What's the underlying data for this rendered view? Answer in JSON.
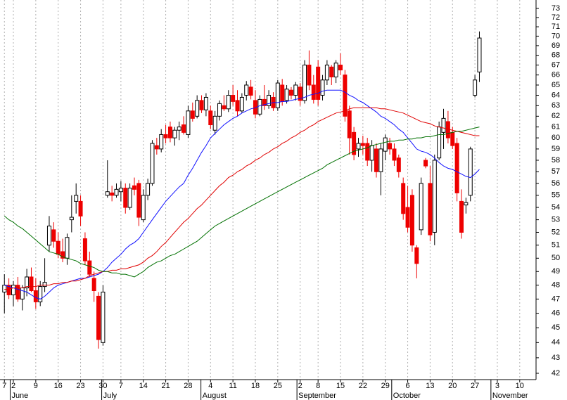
{
  "chart_data": {
    "type": "candlestick",
    "log": true,
    "ylim": [
      42,
      73
    ],
    "yticks": [
      42,
      43,
      44,
      45,
      46,
      47,
      48,
      49,
      50,
      51,
      52,
      53,
      54,
      55,
      56,
      57,
      58,
      59,
      60,
      61,
      62,
      63,
      64,
      65,
      66,
      67,
      68,
      69,
      70,
      71,
      72,
      73
    ],
    "grid": true,
    "up_color": "#ffffff",
    "down_color": "#ee0000",
    "categories": [
      "7",
      null,
      "2",
      null,
      null,
      null,
      null,
      "9",
      null,
      null,
      null,
      null,
      "16",
      null,
      null,
      null,
      null,
      "23",
      null,
      null,
      null,
      null,
      "30",
      null,
      null,
      null,
      "7",
      null,
      null,
      null,
      null,
      "14",
      null,
      null,
      null,
      null,
      "21",
      null,
      null,
      null,
      null,
      "28",
      null,
      null,
      null,
      null,
      "4",
      null,
      null,
      null,
      null,
      "11",
      null,
      null,
      null,
      null,
      "18",
      null,
      null,
      null,
      null,
      "25",
      null,
      null,
      null,
      null,
      "2",
      null,
      null,
      null,
      "8",
      null,
      null,
      null,
      null,
      "15",
      null,
      null,
      null,
      null,
      "22",
      null,
      null,
      null,
      null,
      "29",
      null,
      null,
      null,
      null,
      "6",
      null,
      null,
      null,
      null,
      "13",
      null,
      null,
      null,
      null,
      "20",
      null,
      null,
      null,
      null,
      "27",
      null,
      null,
      null,
      null,
      "3",
      null,
      null,
      null,
      null,
      "10",
      null,
      null,
      null
    ],
    "months": [
      "June",
      "July",
      "August",
      "September",
      "October",
      "November"
    ],
    "open": [
      47.5,
      48.0,
      47.3,
      48.0,
      47.0,
      47.8,
      48.6,
      47.6,
      46.8,
      47.9,
      51.0,
      52.2,
      51.3,
      50.5,
      50.0,
      53.0,
      54.5,
      54.5,
      51.5,
      49.8,
      48.5,
      47.2,
      44.0,
      55.0,
      55.2,
      55.0,
      55.3,
      55.6,
      54.0,
      55.8,
      56.0,
      53.0,
      55.0,
      56.0,
      59.3,
      59.0,
      60.3,
      61.0,
      60.0,
      60.7,
      61.2,
      60.3,
      62.5,
      62.0,
      63.5,
      62.6,
      62.5,
      60.7,
      62.0,
      63.0,
      62.7,
      64.0,
      63.5,
      62.5,
      64.0,
      64.8,
      63.5,
      62.2,
      63.6,
      63.0,
      63.8,
      62.8,
      65.0,
      63.5,
      64.5,
      64.0,
      64.8,
      63.5,
      67.0,
      65.0,
      66.8,
      64.0,
      65.5,
      66.8,
      65.8,
      67.0,
      66.0,
      62.5,
      60.5,
      59.0,
      59.5,
      59.5,
      58.0,
      59.0,
      57.0,
      58.8,
      59.5,
      59.0,
      58.2,
      56.0,
      54.0,
      55.0,
      50.8,
      52.2,
      58.0,
      56.0,
      52.0,
      58.2,
      60.5,
      61.5,
      60.5,
      59.5,
      54.5,
      54.2,
      55.0,
      64.0,
      66.3,
      null,
      null,
      null,
      null,
      null,
      null,
      null,
      null,
      null,
      null,
      null,
      null
    ],
    "high": [
      48.8,
      48.5,
      48.3,
      48.6,
      48.0,
      49.2,
      49.3,
      48.5,
      48.3,
      50.0,
      53.3,
      52.8,
      52.0,
      51.5,
      51.9,
      55.0,
      56.0,
      55.0,
      52.0,
      50.5,
      49.0,
      47.5,
      48.0,
      58.0,
      55.8,
      56.0,
      56.2,
      56.0,
      56.0,
      56.5,
      56.3,
      55.5,
      56.4,
      59.8,
      60.0,
      60.8,
      61.2,
      61.5,
      61.0,
      61.5,
      62.0,
      63.0,
      63.3,
      64.0,
      64.0,
      64.2,
      63.0,
      62.5,
      63.5,
      64.0,
      64.5,
      65.0,
      64.5,
      64.2,
      65.4,
      65.5,
      64.5,
      64.0,
      65.0,
      64.5,
      64.3,
      65.5,
      65.6,
      65.0,
      64.8,
      65.3,
      65.2,
      67.5,
      68.5,
      66.0,
      67.5,
      66.0,
      67.5,
      67.0,
      67.5,
      68.2,
      66.5,
      63.0,
      61.0,
      60.0,
      60.2,
      60.0,
      59.8,
      59.5,
      59.5,
      60.3,
      60.0,
      59.5,
      58.5,
      56.5,
      55.8,
      55.5,
      51.0,
      56.5,
      58.2,
      57.5,
      58.5,
      61.5,
      62.7,
      62.5,
      61.0,
      60.0,
      55.5,
      54.8,
      59.2,
      66.0,
      70.5,
      null,
      null,
      null,
      null,
      null,
      null,
      null,
      null,
      null,
      null,
      null,
      null
    ],
    "low": [
      46.0,
      47.0,
      46.5,
      46.8,
      46.2,
      47.2,
      47.5,
      46.3,
      46.5,
      47.5,
      50.5,
      50.8,
      50.0,
      49.7,
      49.5,
      52.0,
      53.5,
      52.5,
      49.5,
      48.6,
      46.8,
      43.6,
      43.8,
      54.8,
      54.5,
      54.8,
      54.5,
      53.5,
      53.8,
      55.0,
      52.5,
      52.8,
      54.6,
      55.8,
      58.5,
      58.7,
      59.5,
      59.6,
      59.3,
      59.8,
      60.3,
      60.0,
      61.5,
      61.8,
      62.3,
      62.0,
      60.8,
      60.3,
      61.6,
      62.5,
      62.4,
      63.0,
      62.0,
      62.3,
      63.5,
      63.6,
      61.8,
      62.0,
      62.6,
      62.7,
      62.5,
      62.5,
      63.0,
      63.2,
      63.6,
      63.5,
      63.0,
      63.2,
      64.5,
      63.2,
      63.0,
      63.5,
      65.0,
      65.0,
      65.2,
      66.0,
      61.5,
      58.5,
      58.0,
      58.3,
      58.5,
      57.5,
      57.0,
      56.5,
      55.0,
      58.0,
      58.5,
      57.5,
      56.5,
      53.0,
      52.0,
      50.5,
      48.5,
      51.8,
      57.3,
      51.3,
      51.0,
      58.0,
      59.0,
      59.5,
      59.0,
      54.5,
      51.5,
      53.5,
      54.5,
      63.8,
      65.3,
      null,
      null,
      null,
      null,
      null,
      null,
      null,
      null,
      null,
      null,
      null,
      null
    ],
    "close": [
      48.0,
      47.3,
      48.0,
      47.0,
      47.8,
      48.6,
      47.6,
      46.8,
      47.9,
      48.2,
      52.5,
      51.3,
      50.3,
      50.0,
      51.6,
      53.2,
      55.0,
      53.3,
      49.8,
      48.8,
      47.6,
      44.2,
      47.5,
      55.3,
      55.0,
      55.5,
      55.6,
      54.0,
      55.6,
      55.5,
      53.2,
      55.0,
      56.0,
      59.5,
      59.0,
      60.3,
      60.0,
      60.0,
      60.7,
      61.0,
      60.5,
      62.5,
      61.8,
      63.5,
      62.6,
      63.8,
      61.2,
      62.0,
      63.2,
      62.7,
      64.0,
      63.4,
      62.5,
      63.8,
      65.0,
      64.0,
      62.2,
      63.6,
      63.0,
      64.0,
      62.8,
      65.2,
      63.4,
      64.6,
      64.0,
      65.0,
      63.5,
      67.0,
      65.0,
      63.6,
      63.6,
      65.5,
      67.0,
      65.8,
      67.2,
      66.5,
      62.0,
      60.0,
      58.5,
      59.5,
      59.3,
      58.0,
      59.3,
      57.0,
      59.0,
      60.0,
      59.0,
      58.0,
      57.0,
      53.5,
      52.4,
      51.0,
      49.6,
      56.0,
      57.5,
      51.8,
      58.0,
      61.0,
      61.8,
      60.0,
      59.3,
      55.2,
      52.0,
      54.4,
      59.0,
      65.5,
      69.8,
      null,
      null,
      null,
      null,
      null,
      null,
      null,
      null,
      null,
      null,
      null,
      null
    ],
    "lines": [
      {
        "color": "#1010ff",
        "values": [
          48.0,
          47.9,
          47.8,
          47.7,
          47.6,
          47.5,
          47.3,
          47.1,
          47.0,
          47.2,
          47.5,
          47.8,
          48.0,
          48.1,
          48.2,
          48.3,
          48.4,
          48.5,
          48.5,
          48.6,
          48.7,
          48.8,
          49.0,
          49.3,
          49.7,
          50.0,
          50.3,
          50.7,
          51.0,
          51.2,
          51.5,
          52.0,
          52.5,
          53.0,
          53.5,
          54.0,
          54.5,
          54.9,
          55.3,
          55.7,
          56.0,
          56.7,
          57.3,
          58.0,
          58.7,
          59.3,
          60.0,
          60.4,
          60.8,
          61.2,
          61.5,
          61.8,
          62.0,
          62.3,
          62.5,
          62.7,
          62.8,
          63.0,
          63.1,
          63.2,
          63.3,
          63.3,
          63.4,
          63.4,
          63.5,
          63.6,
          63.7,
          63.8,
          64.0,
          64.1,
          64.2,
          64.4,
          64.5,
          64.5,
          64.5,
          64.5,
          64.3,
          64.0,
          63.8,
          63.5,
          63.3,
          63.0,
          62.7,
          62.4,
          62.0,
          61.8,
          61.5,
          61.2,
          60.8,
          60.5,
          60.0,
          59.5,
          59.0,
          58.8,
          58.7,
          58.5,
          58.2,
          57.8,
          57.5,
          57.3,
          57.2,
          57.0,
          56.8,
          56.6,
          56.5,
          56.8,
          57.2,
          null,
          null,
          null,
          null,
          null,
          null,
          null,
          null,
          null,
          null,
          null,
          null
        ]
      },
      {
        "color": "#e00000",
        "values": [
          47.7,
          47.7,
          47.8,
          47.8,
          47.8,
          47.9,
          47.9,
          47.9,
          48.0,
          48.0,
          48.0,
          48.1,
          48.1,
          48.2,
          48.2,
          48.3,
          48.3,
          48.4,
          48.5,
          48.7,
          48.8,
          48.9,
          49.0,
          49.0,
          49.1,
          49.1,
          49.2,
          49.2,
          49.3,
          49.4,
          49.5,
          49.7,
          50.0,
          50.2,
          50.5,
          50.9,
          51.2,
          51.6,
          52.0,
          52.4,
          52.8,
          53.1,
          53.5,
          53.9,
          54.2,
          54.6,
          55.0,
          55.4,
          55.8,
          56.1,
          56.5,
          56.7,
          57.0,
          57.2,
          57.5,
          57.7,
          58.0,
          58.2,
          58.5,
          58.7,
          59.0,
          59.2,
          59.5,
          59.7,
          60.0,
          60.2,
          60.5,
          60.7,
          61.0,
          61.2,
          61.5,
          61.7,
          61.9,
          62.1,
          62.3,
          62.4,
          62.5,
          62.7,
          62.8,
          62.8,
          62.8,
          62.8,
          62.8,
          62.8,
          62.7,
          62.7,
          62.6,
          62.5,
          62.4,
          62.3,
          62.1,
          61.9,
          61.7,
          61.5,
          61.4,
          61.3,
          61.1,
          61.0,
          60.9,
          60.8,
          60.7,
          60.6,
          60.5,
          60.4,
          60.3,
          60.2,
          60.2,
          null,
          null,
          null,
          null,
          null,
          null,
          null,
          null,
          null,
          null,
          null,
          null
        ]
      },
      {
        "color": "#007000",
        "values": [
          53.3,
          53.0,
          52.8,
          52.5,
          52.3,
          52.0,
          51.7,
          51.4,
          51.1,
          50.8,
          50.5,
          50.4,
          50.3,
          50.1,
          50.0,
          49.9,
          49.8,
          49.6,
          49.5,
          49.4,
          49.3,
          49.1,
          49.0,
          49.0,
          48.9,
          48.9,
          48.8,
          48.8,
          48.7,
          48.6,
          48.8,
          49.0,
          49.3,
          49.5,
          49.7,
          49.8,
          50.0,
          50.2,
          50.3,
          50.5,
          50.7,
          50.9,
          51.1,
          51.3,
          51.6,
          51.9,
          52.2,
          52.5,
          52.7,
          52.9,
          53.1,
          53.3,
          53.5,
          53.7,
          53.9,
          54.1,
          54.3,
          54.5,
          54.7,
          54.9,
          55.1,
          55.3,
          55.5,
          55.7,
          55.9,
          56.1,
          56.3,
          56.5,
          56.7,
          56.9,
          57.1,
          57.3,
          57.6,
          57.8,
          58.0,
          58.2,
          58.4,
          58.6,
          58.8,
          58.9,
          59.0,
          59.1,
          59.3,
          59.4,
          59.5,
          59.6,
          59.7,
          59.7,
          59.8,
          59.8,
          59.9,
          59.9,
          60.0,
          60.0,
          60.1,
          60.1,
          60.2,
          60.3,
          60.3,
          60.4,
          60.5,
          60.6,
          60.6,
          60.7,
          60.8,
          60.9,
          61.0,
          null,
          null,
          null,
          null,
          null,
          null,
          null,
          null,
          null,
          null,
          null,
          null
        ]
      }
    ]
  }
}
